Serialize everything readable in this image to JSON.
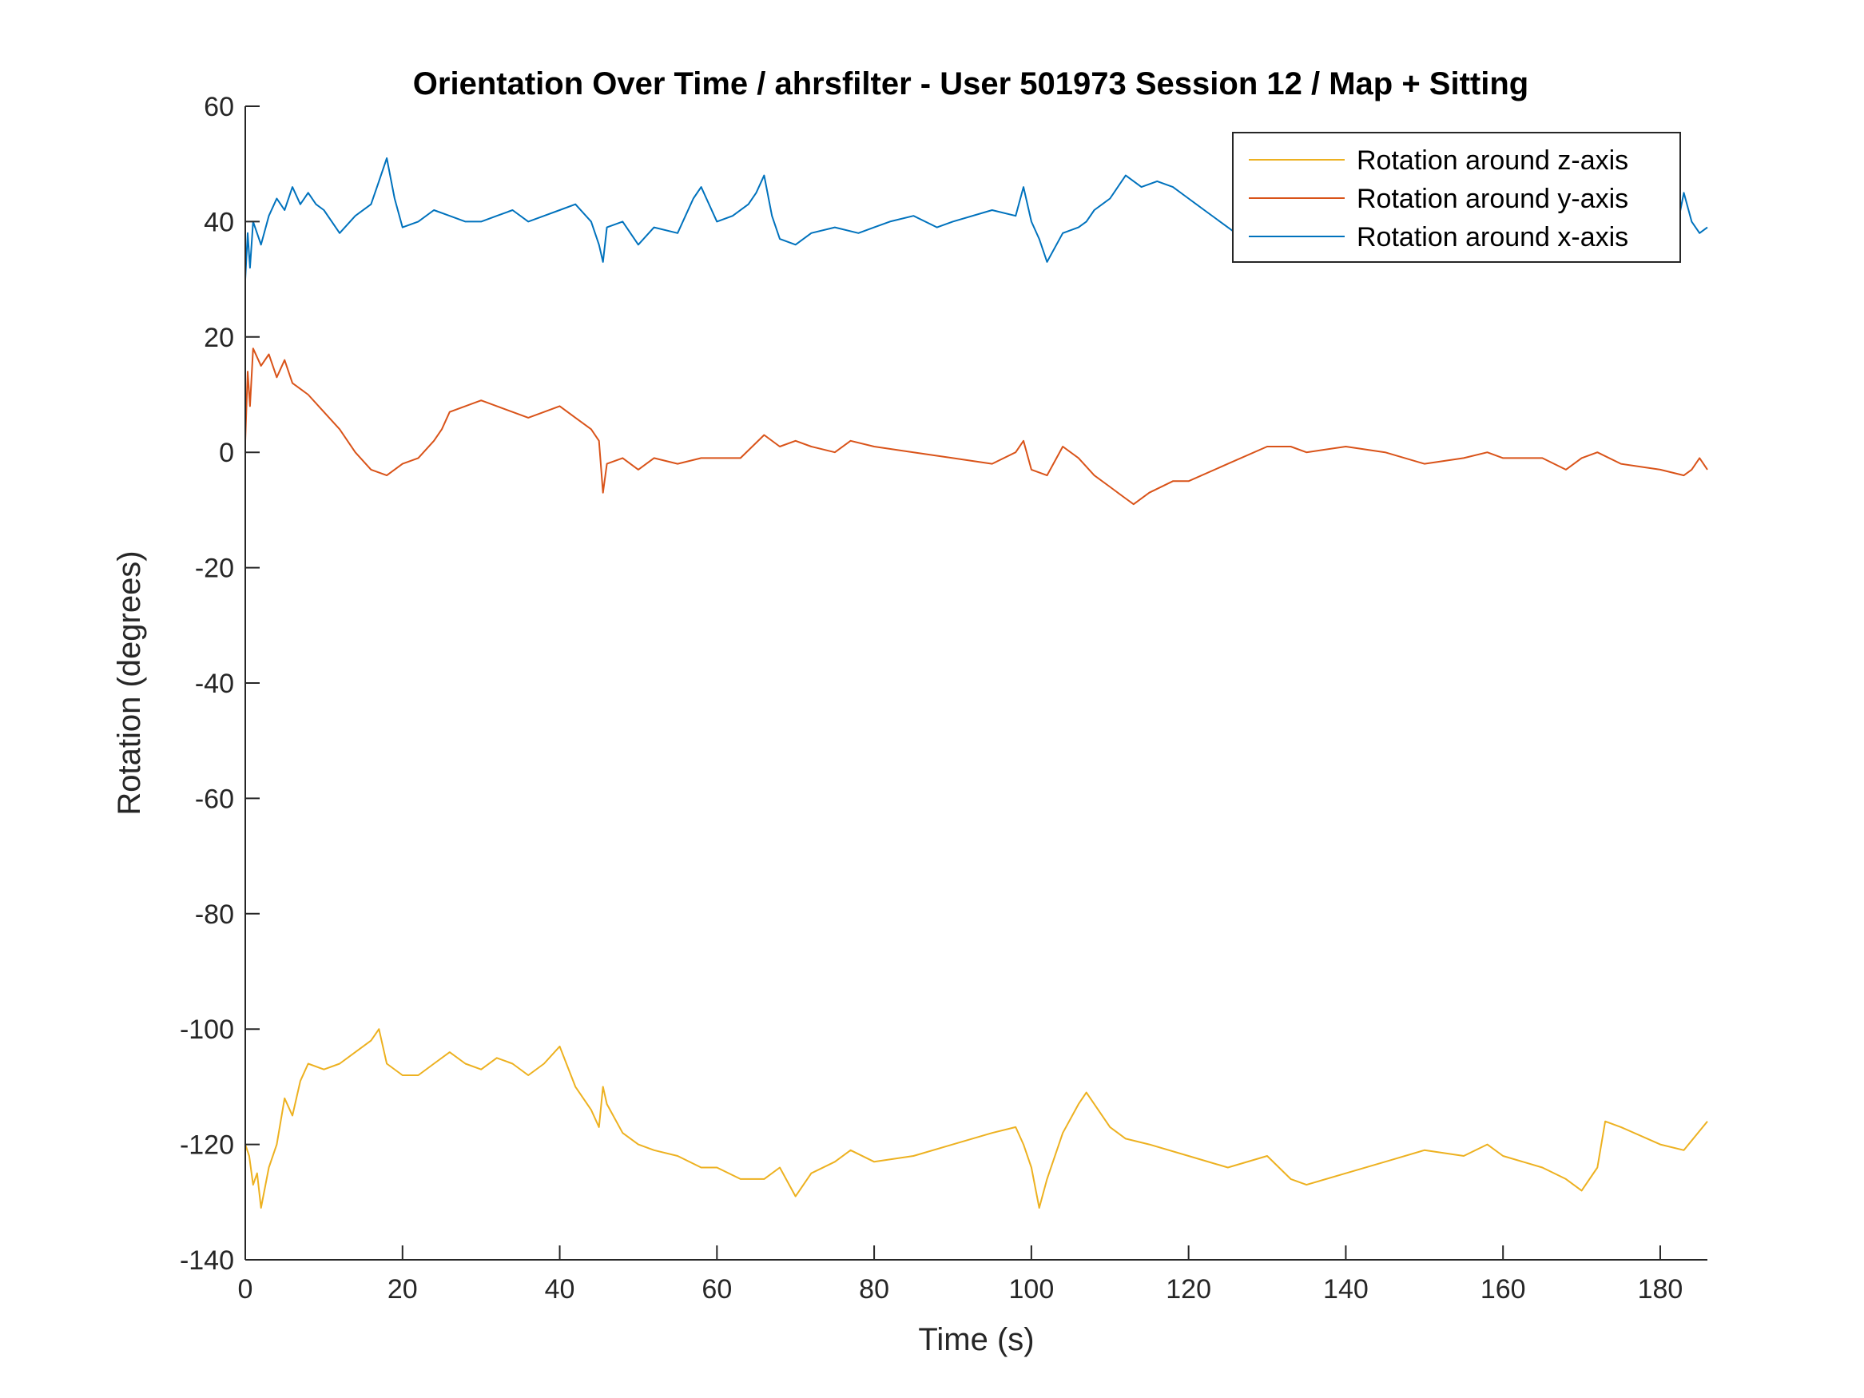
{
  "chart_data": {
    "type": "line",
    "title": "Orientation Over Time / ahrsfilter - User 501973 Session 12 / Map + Sitting",
    "xlabel": "Time (s)",
    "ylabel": "Rotation (degrees)",
    "xlim": [
      0,
      186
    ],
    "ylim": [
      -140,
      60
    ],
    "xticks": [
      0,
      20,
      40,
      60,
      80,
      100,
      120,
      140,
      160,
      180
    ],
    "yticks": [
      60,
      40,
      20,
      0,
      -20,
      -40,
      -60,
      -80,
      -100,
      -120,
      -140
    ],
    "grid": false,
    "legend_position": "top-right",
    "series": [
      {
        "name": "Rotation around z-axis",
        "color": "#EDB120",
        "x": [
          0,
          0.5,
          1,
          1.5,
          2,
          3,
          4,
          5,
          6,
          7,
          8,
          10,
          12,
          14,
          16,
          17,
          18,
          20,
          22,
          24,
          26,
          28,
          30,
          32,
          34,
          36,
          38,
          40,
          42,
          44,
          45,
          45.5,
          46,
          48,
          50,
          52,
          55,
          58,
          60,
          63,
          66,
          68,
          70,
          72,
          75,
          77,
          80,
          85,
          90,
          95,
          98,
          99,
          100,
          101,
          102,
          104,
          106,
          107,
          108,
          110,
          112,
          115,
          120,
          125,
          130,
          133,
          135,
          140,
          145,
          150,
          155,
          158,
          160,
          165,
          168,
          170,
          172,
          173,
          175,
          180,
          183,
          186
        ],
        "y": [
          -120,
          -122,
          -127,
          -125,
          -131,
          -124,
          -120,
          -112,
          -115,
          -109,
          -106,
          -107,
          -106,
          -104,
          -102,
          -100,
          -106,
          -108,
          -108,
          -106,
          -104,
          -106,
          -107,
          -105,
          -106,
          -108,
          -106,
          -103,
          -110,
          -114,
          -117,
          -110,
          -113,
          -118,
          -120,
          -121,
          -122,
          -124,
          -124,
          -126,
          -126,
          -124,
          -129,
          -125,
          -123,
          -121,
          -123,
          -122,
          -120,
          -118,
          -117,
          -120,
          -124,
          -131,
          -126,
          -118,
          -113,
          -111,
          -113,
          -117,
          -119,
          -120,
          -122,
          -124,
          -122,
          -126,
          -127,
          -125,
          -123,
          -121,
          -122,
          -120,
          -122,
          -124,
          -126,
          -128,
          -124,
          -116,
          -117,
          -120,
          -121,
          -116
        ]
      },
      {
        "name": "Rotation around y-axis",
        "color": "#D95319",
        "x": [
          0,
          0.3,
          0.6,
          1,
          2,
          3,
          4,
          5,
          6,
          8,
          10,
          12,
          14,
          16,
          18,
          20,
          22,
          24,
          25,
          26,
          28,
          30,
          32,
          34,
          36,
          38,
          40,
          42,
          44,
          45,
          45.5,
          46,
          48,
          50,
          52,
          55,
          58,
          60,
          63,
          66,
          68,
          70,
          72,
          75,
          77,
          80,
          85,
          90,
          95,
          98,
          99,
          100,
          102,
          104,
          106,
          108,
          110,
          112,
          113,
          115,
          118,
          120,
          125,
          130,
          133,
          135,
          140,
          145,
          150,
          155,
          158,
          160,
          165,
          168,
          170,
          172,
          175,
          180,
          183,
          184,
          185,
          186
        ],
        "y": [
          2,
          14,
          8,
          18,
          15,
          17,
          13,
          16,
          12,
          10,
          7,
          4,
          0,
          -3,
          -4,
          -2,
          -1,
          2,
          4,
          7,
          8,
          9,
          8,
          7,
          6,
          7,
          8,
          6,
          4,
          2,
          -7,
          -2,
          -1,
          -3,
          -1,
          -2,
          -1,
          -1,
          -1,
          3,
          1,
          2,
          1,
          0,
          2,
          1,
          0,
          -1,
          -2,
          0,
          2,
          -3,
          -4,
          1,
          -1,
          -4,
          -6,
          -8,
          -9,
          -7,
          -5,
          -5,
          -2,
          1,
          1,
          0,
          1,
          0,
          -2,
          -1,
          0,
          -1,
          -1,
          -3,
          -1,
          0,
          -2,
          -3,
          -4,
          -3,
          -1,
          -3
        ]
      },
      {
        "name": "Rotation around x-axis",
        "color": "#0072BD",
        "x": [
          0,
          0.3,
          0.6,
          1,
          2,
          3,
          4,
          5,
          6,
          7,
          8,
          9,
          10,
          12,
          14,
          16,
          17,
          18,
          19,
          20,
          22,
          24,
          26,
          28,
          30,
          32,
          34,
          36,
          38,
          40,
          42,
          44,
          45,
          45.5,
          46,
          48,
          50,
          52,
          55,
          57,
          58,
          60,
          62,
          64,
          65,
          66,
          67,
          68,
          70,
          72,
          75,
          78,
          80,
          82,
          85,
          88,
          90,
          95,
          98,
          99,
          100,
          101,
          102,
          104,
          106,
          107,
          108,
          110,
          112,
          114,
          116,
          118,
          120,
          122,
          124,
          126,
          130,
          135,
          140,
          145,
          150,
          155,
          160,
          165,
          168,
          170,
          175,
          180,
          182,
          183,
          184,
          185,
          186
        ],
        "y": [
          30,
          38,
          32,
          40,
          36,
          41,
          44,
          42,
          46,
          43,
          45,
          43,
          42,
          38,
          41,
          43,
          47,
          51,
          44,
          39,
          40,
          42,
          41,
          40,
          40,
          41,
          42,
          40,
          41,
          42,
          43,
          40,
          36,
          33,
          39,
          40,
          36,
          39,
          38,
          44,
          46,
          40,
          41,
          43,
          45,
          48,
          41,
          37,
          36,
          38,
          39,
          38,
          39,
          40,
          41,
          39,
          40,
          42,
          41,
          46,
          40,
          37,
          33,
          38,
          39,
          40,
          42,
          44,
          48,
          46,
          47,
          46,
          44,
          42,
          40,
          38,
          37,
          38,
          37,
          38,
          37,
          38,
          37,
          36,
          35,
          37,
          36,
          37,
          38,
          45,
          40,
          38,
          39
        ]
      }
    ]
  }
}
